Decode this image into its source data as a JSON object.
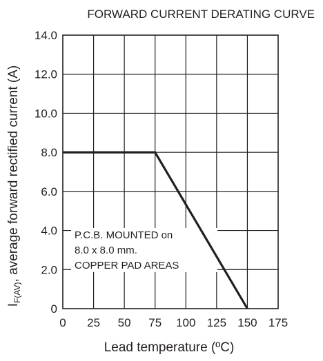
{
  "chart_data": {
    "type": "line",
    "title": "FORWARD CURRENT DERATING CURVE",
    "xlabel": "Lead temperature (ºC)",
    "ylabel": {
      "main": "I",
      "subscript": "F(AV)",
      "rest": ", average forward rectified current (A)"
    },
    "xlim": [
      0,
      175
    ],
    "ylim": [
      0,
      14.0
    ],
    "x_ticks": [
      "0",
      "25",
      "50",
      "75",
      "100",
      "125",
      "150",
      "175"
    ],
    "y_ticks": [
      "0",
      "2.0",
      "4.0",
      "6.0",
      "8.0",
      "10.0",
      "12.0",
      "14.0"
    ],
    "grid": true,
    "series": [
      {
        "x": [
          0,
          75,
          150
        ],
        "y": [
          8.0,
          8.0,
          0
        ]
      }
    ],
    "annotation": {
      "lines": [
        "P.C.B. MOUNTED on",
        "8.0 x 8.0 mm.",
        "COPPER PAD AREAS"
      ]
    },
    "colors": {
      "ink": "#231f20"
    }
  }
}
